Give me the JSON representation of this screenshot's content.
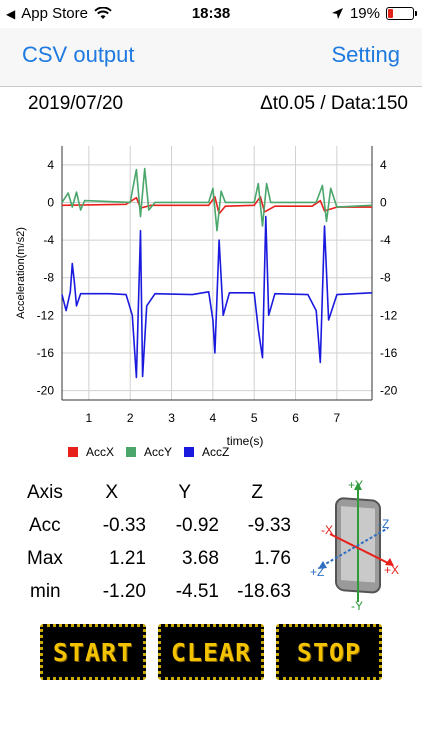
{
  "status": {
    "carrier": "App Store",
    "time": "18:38",
    "battery": "19%",
    "battery_level": 0.19
  },
  "nav": {
    "left": "CSV output",
    "right": "Setting"
  },
  "info": {
    "date": "2019/07/20",
    "sampling": "Δt0.05 / Data:150"
  },
  "chart_data": {
    "type": "line",
    "ylabel": "Acceleration(m/s2)",
    "xlabel": "time(s)",
    "xlim": [
      0.35,
      7.85
    ],
    "ylim": [
      -21,
      6
    ],
    "yticks": [
      4,
      0,
      -4,
      -8,
      -12,
      -16,
      -20
    ],
    "xticks": [
      1,
      2,
      3,
      4,
      5,
      6,
      7
    ],
    "grid": true,
    "legend": "bottom-left",
    "series": [
      {
        "name": "AccX",
        "color": "#e8201c",
        "values": [
          [
            0.35,
            -0.3
          ],
          [
            1.9,
            -0.2
          ],
          [
            2.15,
            0.5
          ],
          [
            2.25,
            -0.6
          ],
          [
            2.5,
            -0.3
          ],
          [
            3.9,
            -0.3
          ],
          [
            4.05,
            0.6
          ],
          [
            4.15,
            -1.2
          ],
          [
            4.3,
            -0.4
          ],
          [
            5.0,
            -0.3
          ],
          [
            5.15,
            0.6
          ],
          [
            5.25,
            -1.0
          ],
          [
            5.5,
            -0.4
          ],
          [
            6.4,
            -0.4
          ],
          [
            6.6,
            0.2
          ],
          [
            6.7,
            -0.9
          ],
          [
            7.0,
            -0.5
          ],
          [
            7.85,
            -0.5
          ]
        ]
      },
      {
        "name": "AccY",
        "color": "#4aa66b",
        "values": [
          [
            0.35,
            0.0
          ],
          [
            0.5,
            1.0
          ],
          [
            0.6,
            -0.5
          ],
          [
            0.7,
            1.1
          ],
          [
            0.8,
            -0.8
          ],
          [
            0.9,
            0.2
          ],
          [
            2.0,
            0.0
          ],
          [
            2.15,
            3.5
          ],
          [
            2.25,
            -1.5
          ],
          [
            2.35,
            3.6
          ],
          [
            2.45,
            -0.8
          ],
          [
            2.6,
            0.0
          ],
          [
            3.9,
            0.0
          ],
          [
            4.0,
            1.5
          ],
          [
            4.1,
            -3.0
          ],
          [
            4.2,
            1.2
          ],
          [
            4.3,
            0.0
          ],
          [
            5.0,
            0.0
          ],
          [
            5.1,
            2.0
          ],
          [
            5.2,
            -2.5
          ],
          [
            5.3,
            2.0
          ],
          [
            5.4,
            0.0
          ],
          [
            6.5,
            0.0
          ],
          [
            6.65,
            1.8
          ],
          [
            6.75,
            -2.0
          ],
          [
            6.85,
            1.5
          ],
          [
            7.0,
            -0.5
          ],
          [
            7.85,
            -0.3
          ]
        ]
      },
      {
        "name": "AccZ",
        "color": "#1a1adf",
        "values": [
          [
            0.35,
            -9.8
          ],
          [
            0.45,
            -11.5
          ],
          [
            0.55,
            -9.5
          ],
          [
            0.6,
            -6.5
          ],
          [
            0.65,
            -8.5
          ],
          [
            0.7,
            -11.0
          ],
          [
            0.8,
            -9.7
          ],
          [
            1.5,
            -9.7
          ],
          [
            1.9,
            -9.8
          ],
          [
            2.05,
            -12.0
          ],
          [
            2.15,
            -18.6
          ],
          [
            2.25,
            -3.0
          ],
          [
            2.3,
            -18.5
          ],
          [
            2.4,
            -11.0
          ],
          [
            2.6,
            -9.7
          ],
          [
            3.5,
            -9.8
          ],
          [
            3.9,
            -9.5
          ],
          [
            4.0,
            -12.5
          ],
          [
            4.05,
            -16.0
          ],
          [
            4.15,
            -4.0
          ],
          [
            4.25,
            -12.0
          ],
          [
            4.4,
            -9.6
          ],
          [
            5.0,
            -9.6
          ],
          [
            5.1,
            -13.5
          ],
          [
            5.2,
            -16.5
          ],
          [
            5.28,
            -1.5
          ],
          [
            5.35,
            -12.0
          ],
          [
            5.5,
            -9.7
          ],
          [
            6.3,
            -9.8
          ],
          [
            6.5,
            -11.5
          ],
          [
            6.6,
            -17.0
          ],
          [
            6.7,
            -2.5
          ],
          [
            6.8,
            -12.5
          ],
          [
            7.0,
            -9.8
          ],
          [
            7.85,
            -9.6
          ]
        ]
      }
    ]
  },
  "stats": {
    "header": {
      "axis": "Axis",
      "x": "X",
      "y": "Y",
      "z": "Z"
    },
    "rows": [
      {
        "label": "Acc",
        "x": "-0.33",
        "y": "-0.92",
        "z": "-9.33"
      },
      {
        "label": "Max",
        "x": "1.21",
        "y": "3.68",
        "z": "1.76"
      },
      {
        "label": "min",
        "x": "-1.20",
        "y": "-4.51",
        "z": "-18.63"
      }
    ]
  },
  "phone_axes": {
    "py": "+Y",
    "ny": "-Y",
    "px": "+X",
    "nx": "-X",
    "pz": "+Z",
    "nz": "-Z"
  },
  "buttons": {
    "start": "START",
    "clear": "CLEAR",
    "stop": "STOP"
  }
}
